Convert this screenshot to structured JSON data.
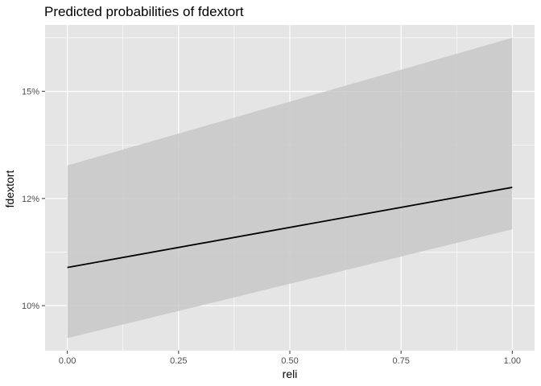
{
  "chart_data": {
    "type": "line",
    "title": "Predicted probabilities of fdextort",
    "xlabel": "reli",
    "ylabel": "fdextort",
    "xlim": [
      -0.05,
      1.05
    ],
    "ylim": [
      0.0895,
      0.1655
    ],
    "x_ticks": [
      0.0,
      0.25,
      0.5,
      0.75,
      1.0
    ],
    "x_tick_labels": [
      "0.00",
      "0.25",
      "0.50",
      "0.75",
      "1.00"
    ],
    "y_ticks": [
      0.1,
      0.125,
      0.15
    ],
    "y_tick_labels": [
      "10%",
      "12%",
      "15%"
    ],
    "grid": true,
    "series": [
      {
        "x": [
          0.0,
          1.0
        ],
        "y": [
          0.1089,
          0.1276
        ],
        "ci_low": [
          0.0924,
          0.1178
        ],
        "ci_high": [
          0.1327,
          0.1625
        ],
        "line_color": "#000000",
        "band_color": "#c8c8c8"
      }
    ],
    "panel_background": "#e5e5e5",
    "grid_color": "#ffffff"
  }
}
